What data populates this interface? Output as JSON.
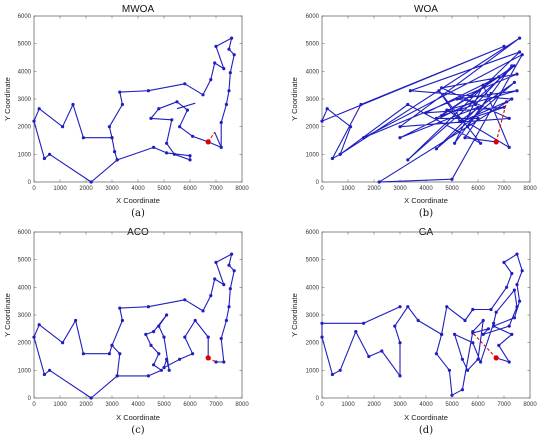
{
  "chart_data": [
    {
      "type": "line",
      "title": "MWOA",
      "panel_label": "(a)",
      "xlabel": "X Coordinate",
      "ylabel": "Y Coordinate",
      "xlim": [
        0,
        8000
      ],
      "ylim": [
        0,
        6000
      ],
      "xticks": [
        "0",
        "1000",
        "2000",
        "3000",
        "4000",
        "5000",
        "6000",
        "7000",
        "8000"
      ],
      "yticks": [
        "0",
        "1000",
        "2000",
        "3000",
        "4000",
        "5000",
        "6000"
      ],
      "start_point": [
        6700,
        1450
      ],
      "closing_segment": [
        [
          6700,
          1450
        ],
        [
          6950,
          1800
        ]
      ],
      "route": [
        [
          6700,
          1450
        ],
        [
          6100,
          1650
        ],
        [
          5600,
          2000
        ],
        [
          5900,
          2600
        ],
        [
          5500,
          2900
        ],
        [
          4800,
          2650
        ],
        [
          4500,
          2300
        ],
        [
          5300,
          2250
        ],
        [
          5100,
          1400
        ],
        [
          5400,
          1000
        ],
        [
          6000,
          800
        ],
        [
          6000,
          950
        ],
        [
          5100,
          1050
        ],
        [
          4600,
          1250
        ],
        [
          3200,
          800
        ],
        [
          3100,
          1100
        ],
        [
          3000,
          1600
        ],
        [
          2900,
          2000
        ],
        [
          3400,
          2800
        ],
        [
          3300,
          3250
        ],
        [
          4400,
          3300
        ],
        [
          5800,
          3550
        ],
        [
          6500,
          3150
        ],
        [
          6800,
          3700
        ],
        [
          6950,
          4300
        ],
        [
          7300,
          4100
        ],
        [
          7000,
          4900
        ],
        [
          7600,
          5200
        ],
        [
          7500,
          4800
        ],
        [
          7700,
          4600
        ],
        [
          7550,
          3950
        ],
        [
          7500,
          3300
        ],
        [
          7400,
          2800
        ],
        [
          7200,
          2150
        ],
        [
          7200,
          1250
        ],
        [
          6700,
          1450
        ]
      ],
      "route_tail": [
        [
          7200,
          1250
        ],
        [
          6950,
          1800
        ]
      ],
      "route_head_extra": [
        [
          6200,
          2850
        ],
        [
          5500,
          2650
        ]
      ],
      "left_loop": [
        [
          3000,
          1600
        ],
        [
          1900,
          1600
        ],
        [
          1500,
          2800
        ],
        [
          1100,
          2000
        ],
        [
          200,
          2650
        ],
        [
          0,
          2200
        ],
        [
          400,
          850
        ],
        [
          600,
          1000
        ],
        [
          2200,
          0
        ],
        [
          3200,
          800
        ]
      ]
    },
    {
      "type": "line",
      "title": "WOA",
      "panel_label": "(b)",
      "xlabel": "X Coordinate",
      "ylabel": "Y Coordinate",
      "xlim": [
        0,
        8000
      ],
      "ylim": [
        0,
        6000
      ],
      "xticks": [
        "0",
        "1000",
        "2000",
        "3000",
        "4000",
        "5000",
        "6000",
        "7000",
        "8000"
      ],
      "yticks": [
        "0",
        "1000",
        "2000",
        "3000",
        "4000",
        "5000",
        "6000"
      ],
      "start_point": [
        6700,
        1450
      ],
      "closing_segment": [
        [
          6700,
          1450
        ],
        [
          7100,
          2900
        ]
      ],
      "route": [
        [
          6700,
          1450
        ],
        [
          5500,
          1600
        ],
        [
          6000,
          2300
        ],
        [
          4400,
          2300
        ],
        [
          7400,
          4200
        ],
        [
          3300,
          800
        ],
        [
          7600,
          4700
        ],
        [
          3400,
          3300
        ],
        [
          7300,
          3000
        ],
        [
          2200,
          0
        ],
        [
          5000,
          100
        ],
        [
          7700,
          4600
        ],
        [
          1600,
          1600
        ],
        [
          7500,
          3900
        ],
        [
          4600,
          3400
        ],
        [
          7200,
          2300
        ],
        [
          3000,
          2000
        ],
        [
          7600,
          5200
        ],
        [
          700,
          1000
        ],
        [
          400,
          850
        ],
        [
          1500,
          2800
        ],
        [
          7000,
          4900
        ],
        [
          0,
          2200
        ],
        [
          200,
          2650
        ],
        [
          1100,
          2000
        ],
        [
          700,
          1000
        ],
        [
          3300,
          2800
        ],
        [
          6100,
          1400
        ],
        [
          4500,
          3300
        ],
        [
          5300,
          2200
        ],
        [
          7400,
          3600
        ],
        [
          4400,
          1200
        ],
        [
          6000,
          2700
        ],
        [
          3000,
          1600
        ],
        [
          5800,
          2900
        ],
        [
          5200,
          3000
        ],
        [
          7500,
          3300
        ],
        [
          4800,
          2600
        ],
        [
          7200,
          1250
        ],
        [
          6200,
          3500
        ],
        [
          5100,
          1400
        ],
        [
          6500,
          3200
        ],
        [
          5600,
          2000
        ],
        [
          7300,
          4200
        ],
        [
          5900,
          2800
        ],
        [
          4600,
          2400
        ],
        [
          6800,
          3800
        ],
        [
          4000,
          2500
        ],
        [
          7000,
          2700
        ],
        [
          5400,
          2200
        ],
        [
          7100,
          2900
        ]
      ]
    },
    {
      "type": "line",
      "title": "ACO",
      "panel_label": "(c)",
      "xlabel": "X Coordinate",
      "ylabel": "Y Coordinate",
      "xlim": [
        0,
        8000
      ],
      "ylim": [
        0,
        6000
      ],
      "xticks": [
        "0",
        "1000",
        "2000",
        "3000",
        "4000",
        "5000",
        "6000",
        "7000",
        "8000"
      ],
      "yticks": [
        "0",
        "1000",
        "2000",
        "3000",
        "4000",
        "5000",
        "6000"
      ],
      "start_point": [
        6700,
        1450
      ],
      "closing_segment": [
        [
          6700,
          1450
        ],
        [
          7000,
          1300
        ]
      ],
      "route": [
        [
          6700,
          1450
        ],
        [
          6700,
          2200
        ],
        [
          6200,
          2800
        ],
        [
          5800,
          2200
        ],
        [
          6100,
          1600
        ],
        [
          5600,
          1400
        ],
        [
          5000,
          1100
        ],
        [
          5100,
          1400
        ],
        [
          5200,
          1000
        ],
        [
          5000,
          2200
        ],
        [
          4800,
          2600
        ],
        [
          5100,
          3000
        ],
        [
          4600,
          2400
        ],
        [
          4300,
          2300
        ],
        [
          4500,
          1900
        ],
        [
          4800,
          1600
        ],
        [
          4600,
          1200
        ],
        [
          4900,
          1000
        ],
        [
          4400,
          800
        ],
        [
          3200,
          800
        ],
        [
          3300,
          1600
        ],
        [
          3000,
          1900
        ],
        [
          3400,
          2800
        ],
        [
          3300,
          3250
        ],
        [
          4400,
          3300
        ],
        [
          5800,
          3550
        ],
        [
          6500,
          3150
        ],
        [
          6800,
          3700
        ],
        [
          6950,
          4300
        ],
        [
          7300,
          4100
        ],
        [
          7000,
          4900
        ],
        [
          7600,
          5200
        ],
        [
          7500,
          4800
        ],
        [
          7700,
          4600
        ],
        [
          7550,
          3950
        ],
        [
          7500,
          3300
        ],
        [
          7400,
          2800
        ],
        [
          7200,
          2150
        ],
        [
          7300,
          1300
        ],
        [
          7000,
          1300
        ]
      ],
      "left_loop": [
        [
          3000,
          1900
        ],
        [
          2900,
          1600
        ],
        [
          1900,
          1600
        ],
        [
          1600,
          2800
        ],
        [
          1100,
          2000
        ],
        [
          200,
          2650
        ],
        [
          0,
          2200
        ],
        [
          400,
          850
        ],
        [
          600,
          1000
        ],
        [
          2200,
          0
        ],
        [
          3200,
          800
        ]
      ]
    },
    {
      "type": "line",
      "title": "GA",
      "panel_label": "(d)",
      "xlabel": "X Coordinate",
      "ylabel": "Y Coordinate",
      "xlim": [
        0,
        8000
      ],
      "ylim": [
        0,
        6000
      ],
      "xticks": [
        "0",
        "1000",
        "2000",
        "3000",
        "4000",
        "5000",
        "6000",
        "7000",
        "8000"
      ],
      "yticks": [
        "0",
        "1000",
        "2000",
        "3000",
        "4000",
        "5000",
        "6000"
      ],
      "start_point": [
        6700,
        1450
      ],
      "closing_segment": [
        [
          6700,
          1450
        ],
        [
          5800,
          2350
        ]
      ],
      "route": [
        [
          6700,
          1450
        ],
        [
          7200,
          1300
        ],
        [
          6800,
          1900
        ],
        [
          7300,
          2300
        ],
        [
          6600,
          2600
        ],
        [
          7400,
          2900
        ],
        [
          7600,
          3500
        ],
        [
          7500,
          4100
        ],
        [
          7700,
          4600
        ],
        [
          7500,
          5200
        ],
        [
          7000,
          4900
        ],
        [
          7300,
          4500
        ],
        [
          7100,
          4000
        ],
        [
          6500,
          3200
        ],
        [
          5800,
          3200
        ],
        [
          5500,
          2800
        ],
        [
          4800,
          3300
        ],
        [
          4600,
          2300
        ],
        [
          4400,
          1600
        ],
        [
          4900,
          1000
        ],
        [
          5000,
          100
        ],
        [
          5400,
          300
        ],
        [
          5800,
          2400
        ],
        [
          6200,
          2800
        ],
        [
          6000,
          1400
        ],
        [
          5600,
          1000
        ],
        [
          5400,
          1400
        ],
        [
          5100,
          2300
        ],
        [
          5800,
          2000
        ],
        [
          6100,
          1300
        ],
        [
          6600,
          2700
        ],
        [
          6700,
          3100
        ],
        [
          7400,
          3900
        ],
        [
          7500,
          3300
        ],
        [
          7200,
          2600
        ],
        [
          6200,
          2300
        ],
        [
          6400,
          2500
        ],
        [
          5800,
          2350
        ]
      ],
      "left_loop": [
        [
          4600,
          2300
        ],
        [
          3700,
          2800
        ],
        [
          3300,
          3300
        ],
        [
          2800,
          2600
        ],
        [
          3000,
          2000
        ],
        [
          3000,
          800
        ],
        [
          2300,
          1700
        ],
        [
          1800,
          1500
        ],
        [
          1300,
          2400
        ],
        [
          700,
          1000
        ],
        [
          400,
          850
        ],
        [
          0,
          2200
        ],
        [
          0,
          2700
        ],
        [
          1600,
          2700
        ],
        [
          3000,
          3300
        ]
      ]
    }
  ]
}
